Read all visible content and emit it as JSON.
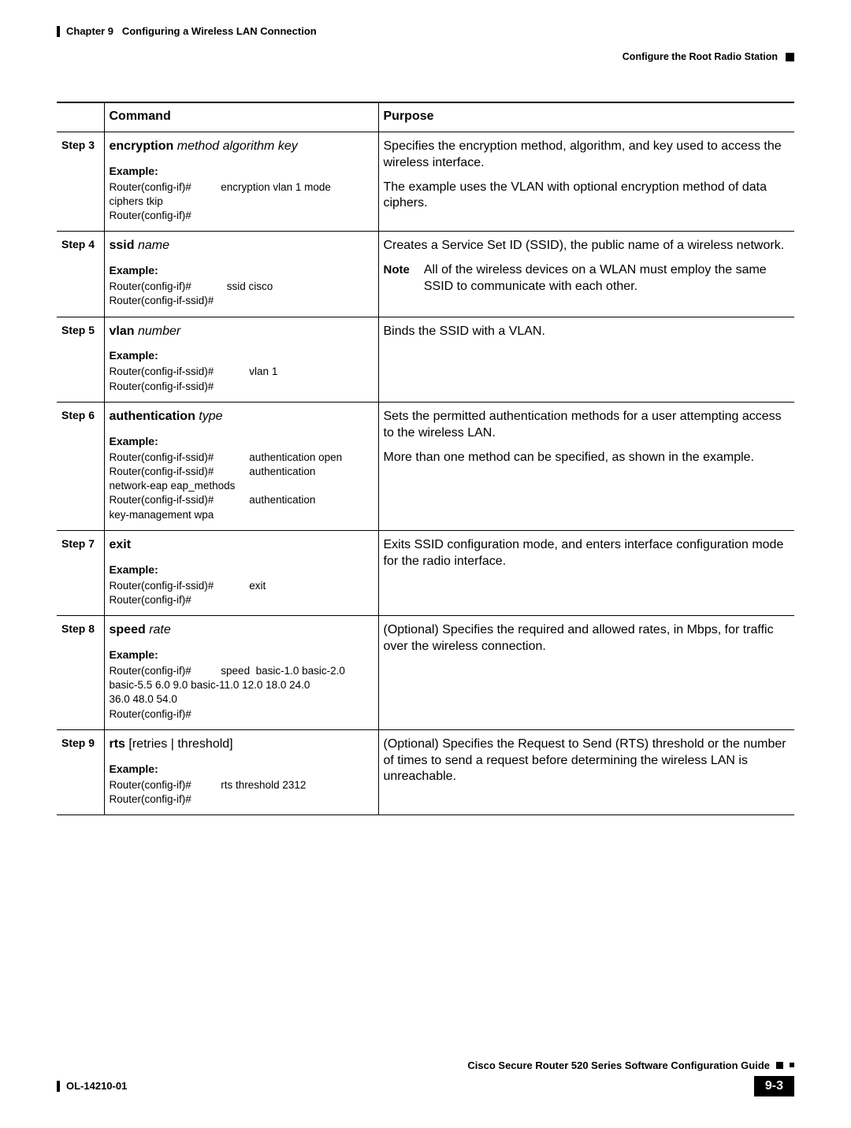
{
  "header": {
    "chapter": "Chapter 9",
    "title": "Configuring a Wireless LAN Connection",
    "section": "Configure the Root Radio Station"
  },
  "table": {
    "headers": {
      "step": "",
      "command": "Command",
      "purpose": "Purpose"
    },
    "rows": [
      {
        "step": "Step 3",
        "syntax_kw1": "encryption",
        "syntax_arg1": "method algorithm key",
        "example_label": "Example:",
        "example": "Router(config-if)#          encryption vlan 1 mode\nciphers tkip\nRouter(config-if)#",
        "purpose_p1": "Specifies the encryption method, algorithm, and key used to access the wireless interface.",
        "purpose_p2": "The example uses the VLAN with optional encryption method of data ciphers."
      },
      {
        "step": "Step 4",
        "syntax_kw1": "ssid",
        "syntax_arg1": "name",
        "example_label": "Example:",
        "example": "Router(config-if)#            ssid cisco\nRouter(config-if-ssid)#",
        "purpose_p1": "Creates a Service Set ID (SSID), the public name of a wireless network.",
        "note_label": "Note",
        "note_text": "All of the wireless devices on a WLAN must employ the same SSID to communicate with each other."
      },
      {
        "step": "Step 5",
        "syntax_kw1": "vlan",
        "syntax_arg1": "number",
        "example_label": "Example:",
        "example": "Router(config-if-ssid)#            vlan 1\nRouter(config-if-ssid)#",
        "purpose_p1": "Binds the SSID with a VLAN."
      },
      {
        "step": "Step 6",
        "syntax_kw1": "authentication",
        "syntax_arg1": "type",
        "example_label": "Example:",
        "example": "Router(config-if-ssid)#            authentication open\nRouter(config-if-ssid)#            authentication\nnetwork-eap eap_methods\nRouter(config-if-ssid)#            authentication\nkey-management wpa",
        "purpose_p1": "Sets the permitted authentication methods for a user attempting access to the wireless LAN.",
        "purpose_p2": "More than one method can be specified, as shown in the example."
      },
      {
        "step": "Step 7",
        "syntax_kw1": "exit",
        "syntax_arg1": "",
        "example_label": "Example:",
        "example": "Router(config-if-ssid)#            exit\nRouter(config-if)#",
        "purpose_p1": "Exits SSID configuration mode, and enters interface configuration mode for the radio interface."
      },
      {
        "step": "Step 8",
        "syntax_kw1": "speed",
        "syntax_arg1": "rate",
        "example_label": "Example:",
        "example": "Router(config-if)#          speed  basic-1.0 basic-2.0\nbasic-5.5 6.0 9.0 basic-11.0 12.0 18.0 24.0\n36.0 48.0 54.0\nRouter(config-if)#",
        "purpose_p1": "(Optional) Specifies the required and allowed rates, in Mbps, for traffic over the wireless connection."
      },
      {
        "step": "Step 9",
        "syntax_kw1": "rts",
        "syntax_plain": " [retries | threshold]",
        "example_label": "Example:",
        "example": "Router(config-if)#          rts threshold 2312\nRouter(config-if)#",
        "purpose_p1": "(Optional) Specifies the Request to Send (RTS) threshold or the number of times to send a request before determining the wireless LAN is unreachable."
      }
    ]
  },
  "footer": {
    "book_title": "Cisco Secure Router 520 Series Software Configuration Guide",
    "doc_id": "OL-14210-01",
    "page_num": "9-3"
  }
}
